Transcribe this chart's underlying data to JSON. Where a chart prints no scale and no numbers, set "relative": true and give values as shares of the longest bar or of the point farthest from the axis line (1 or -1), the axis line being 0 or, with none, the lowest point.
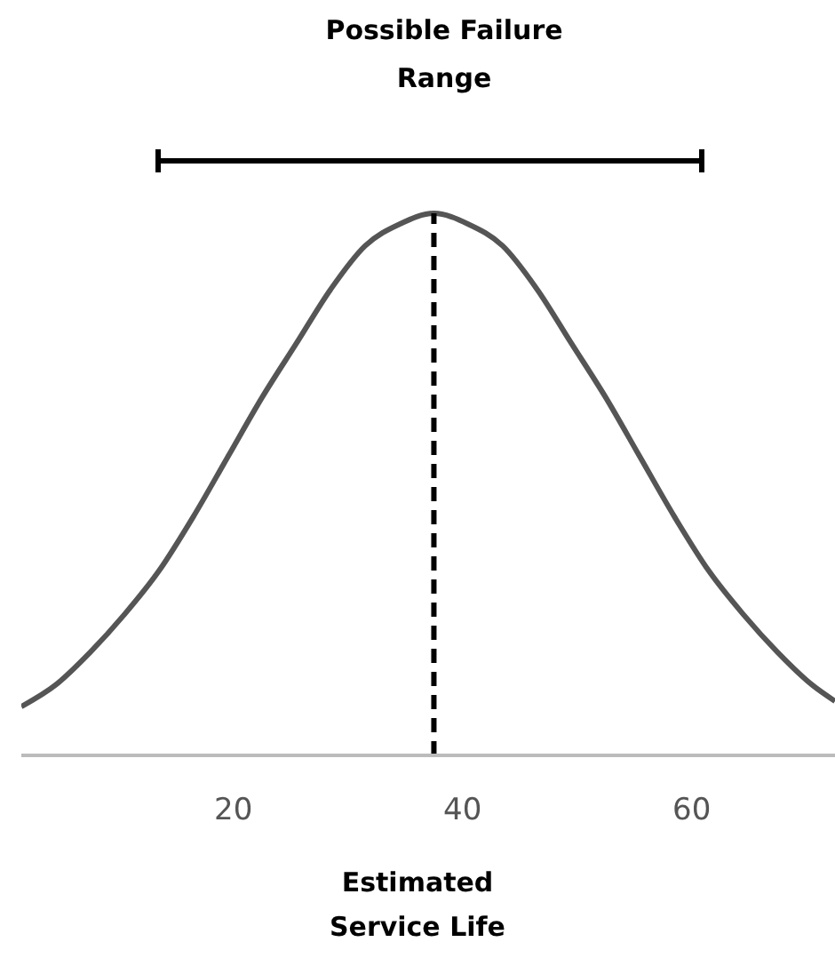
{
  "chart_data": {
    "type": "line",
    "xlabel": "Estimated Service Life",
    "relative": true,
    "xlim": [
      1.5,
      72.5
    ],
    "xticks": [
      20,
      40,
      60
    ],
    "marker": "none",
    "line_style": "solid",
    "x": [
      1.5,
      4.5,
      7.5,
      10.5,
      13.5,
      16.5,
      19.5,
      22.5,
      25.5,
      28.5,
      31.5,
      34.5,
      37.5,
      40.5,
      43.5,
      46.5,
      49.5,
      52.5,
      55.5,
      58.5,
      61.5,
      64.5,
      67.5,
      70.5,
      72.5
    ],
    "series": [
      {
        "color": "#555555",
        "values": [
          0.09,
          0.13,
          0.19,
          0.26,
          0.34,
          0.44,
          0.55,
          0.66,
          0.76,
          0.86,
          0.94,
          0.98,
          1,
          0.98,
          0.94,
          0.86,
          0.76,
          0.66,
          0.55,
          0.44,
          0.34,
          0.26,
          0.19,
          0.13,
          0.1
        ]
      }
    ],
    "ref_lines": [
      {
        "axis": "x",
        "value": 37.5,
        "color": "#000000",
        "line_style": "dashed"
      }
    ],
    "annotations": [
      "Possible Failure Range"
    ]
  }
}
